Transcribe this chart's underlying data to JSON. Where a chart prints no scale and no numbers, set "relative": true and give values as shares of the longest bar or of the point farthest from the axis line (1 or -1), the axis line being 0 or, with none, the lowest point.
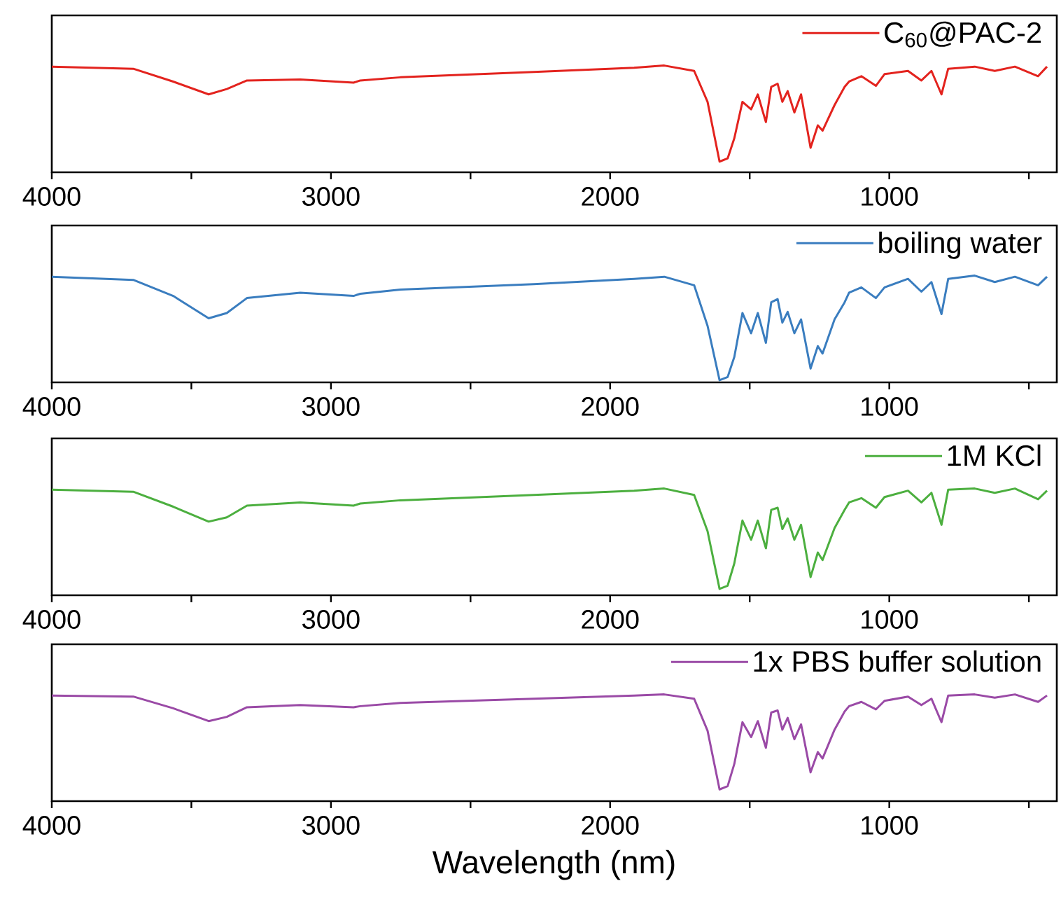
{
  "chart_data": [
    {
      "type": "line",
      "relative": true,
      "legend": "top right",
      "xlim": [
        4000,
        400
      ],
      "xticks": [
        4000,
        {
          "value": 3500,
          "label": null
        },
        3000,
        {
          "value": 2500,
          "label": null
        },
        2000,
        {
          "value": 1500,
          "label": null
        },
        1000,
        {
          "value": 500,
          "label": null
        }
      ],
      "x": [
        4000,
        3708,
        3565,
        3438,
        3373,
        3301,
        3110,
        2919,
        2895,
        2751,
        2273,
        1914,
        1806,
        1699,
        1651,
        1608,
        1579,
        1555,
        1526,
        1495,
        1471,
        1442,
        1423,
        1400,
        1383,
        1364,
        1340,
        1316,
        1282,
        1256,
        1239,
        1196,
        1160,
        1144,
        1100,
        1048,
        1017,
        933,
        885,
        849,
        813,
        789,
        694,
        622,
        550,
        467,
        435
      ],
      "series": [
        {
          "name": "C$_{60}$@PAC-2",
          "color": "#e3231e",
          "values": [
            0.99,
            0.97,
            0.85,
            0.73,
            0.78,
            0.86,
            0.87,
            0.84,
            0.86,
            0.89,
            0.94,
            0.98,
            1.0,
            0.95,
            0.66,
            0.1,
            0.13,
            0.32,
            0.66,
            0.59,
            0.73,
            0.47,
            0.8,
            0.83,
            0.66,
            0.76,
            0.56,
            0.73,
            0.23,
            0.44,
            0.39,
            0.63,
            0.8,
            0.85,
            0.9,
            0.81,
            0.92,
            0.95,
            0.86,
            0.95,
            0.73,
            0.97,
            0.99,
            0.95,
            0.99,
            0.9,
            0.99
          ]
        }
      ]
    },
    {
      "type": "line",
      "relative": true,
      "legend": "top right",
      "xlim": [
        4000,
        400
      ],
      "xticks": [
        4000,
        {
          "value": 3500,
          "label": null
        },
        3000,
        {
          "value": 2500,
          "label": null
        },
        2000,
        {
          "value": 1500,
          "label": null
        },
        1000,
        {
          "value": 500,
          "label": null
        }
      ],
      "x": [
        4000,
        3708,
        3565,
        3438,
        3373,
        3301,
        3110,
        2919,
        2895,
        2751,
        2273,
        1914,
        1806,
        1699,
        1651,
        1608,
        1579,
        1555,
        1526,
        1495,
        1471,
        1442,
        1423,
        1400,
        1383,
        1364,
        1340,
        1316,
        1282,
        1256,
        1239,
        1196,
        1160,
        1144,
        1100,
        1048,
        1017,
        933,
        885,
        849,
        813,
        789,
        694,
        622,
        550,
        467,
        435
      ],
      "series": [
        {
          "name": "boiling water",
          "color": "#3a7dbf",
          "values": [
            0.99,
            0.96,
            0.81,
            0.6,
            0.65,
            0.79,
            0.84,
            0.81,
            0.83,
            0.87,
            0.92,
            0.97,
            0.99,
            0.91,
            0.53,
            0.02,
            0.05,
            0.24,
            0.65,
            0.46,
            0.65,
            0.37,
            0.75,
            0.78,
            0.56,
            0.66,
            0.46,
            0.59,
            0.13,
            0.34,
            0.27,
            0.59,
            0.75,
            0.84,
            0.89,
            0.79,
            0.89,
            0.97,
            0.85,
            0.94,
            0.64,
            0.97,
            1.0,
            0.94,
            0.99,
            0.91,
            0.99
          ]
        }
      ]
    },
    {
      "type": "line",
      "relative": true,
      "legend": "top right",
      "xlim": [
        4000,
        400
      ],
      "xticks": [
        4000,
        {
          "value": 3500,
          "label": null
        },
        3000,
        {
          "value": 2500,
          "label": null
        },
        2000,
        {
          "value": 1500,
          "label": null
        },
        1000,
        {
          "value": 500,
          "label": null
        }
      ],
      "x": [
        4000,
        3708,
        3565,
        3438,
        3373,
        3301,
        3110,
        2919,
        2895,
        2751,
        2273,
        1914,
        1806,
        1699,
        1651,
        1608,
        1579,
        1555,
        1526,
        1495,
        1471,
        1442,
        1423,
        1400,
        1383,
        1364,
        1340,
        1316,
        1282,
        1256,
        1239,
        1196,
        1160,
        1144,
        1100,
        1048,
        1017,
        933,
        885,
        849,
        813,
        789,
        694,
        622,
        550,
        467,
        435
      ],
      "series": [
        {
          "name": "1M KCl",
          "color": "#4caf3f",
          "values": [
            0.99,
            0.97,
            0.83,
            0.69,
            0.73,
            0.84,
            0.87,
            0.84,
            0.86,
            0.89,
            0.94,
            0.98,
            1.0,
            0.94,
            0.6,
            0.06,
            0.09,
            0.3,
            0.7,
            0.52,
            0.7,
            0.44,
            0.8,
            0.82,
            0.62,
            0.72,
            0.52,
            0.66,
            0.17,
            0.4,
            0.33,
            0.63,
            0.8,
            0.87,
            0.91,
            0.82,
            0.92,
            0.98,
            0.87,
            0.96,
            0.66,
            0.99,
            1.0,
            0.96,
            1.0,
            0.9,
            0.98
          ]
        }
      ]
    },
    {
      "type": "line",
      "relative": true,
      "legend": "top right",
      "xlim": [
        4000,
        400
      ],
      "xticks": [
        4000,
        {
          "value": 3500,
          "label": null
        },
        3000,
        {
          "value": 2500,
          "label": null
        },
        2000,
        {
          "value": 1500,
          "label": null
        },
        1000,
        {
          "value": 500,
          "label": null
        }
      ],
      "xlabel": "Wavelength (nm)",
      "x": [
        4000,
        3708,
        3565,
        3438,
        3373,
        3301,
        3110,
        2919,
        2895,
        2751,
        2273,
        1914,
        1806,
        1699,
        1651,
        1608,
        1579,
        1555,
        1526,
        1495,
        1471,
        1442,
        1423,
        1400,
        1383,
        1364,
        1340,
        1316,
        1282,
        1256,
        1239,
        1196,
        1160,
        1144,
        1100,
        1048,
        1017,
        933,
        885,
        849,
        813,
        789,
        694,
        622,
        550,
        467,
        435
      ],
      "series": [
        {
          "name": "1x PBS buffer solution",
          "color": "#9a4aa6",
          "values": [
            0.99,
            0.98,
            0.87,
            0.75,
            0.79,
            0.88,
            0.9,
            0.88,
            0.89,
            0.92,
            0.96,
            0.99,
            1.0,
            0.96,
            0.66,
            0.11,
            0.14,
            0.35,
            0.74,
            0.6,
            0.75,
            0.5,
            0.83,
            0.85,
            0.67,
            0.78,
            0.58,
            0.72,
            0.27,
            0.46,
            0.4,
            0.67,
            0.84,
            0.89,
            0.93,
            0.86,
            0.94,
            0.98,
            0.9,
            0.96,
            0.74,
            0.99,
            1.0,
            0.97,
            1.0,
            0.93,
            0.99
          ]
        }
      ]
    }
  ]
}
